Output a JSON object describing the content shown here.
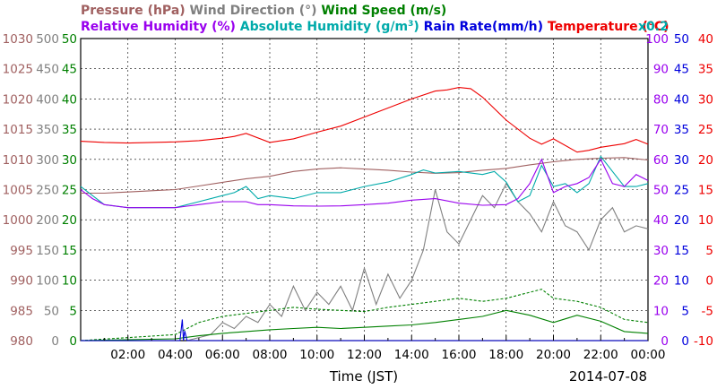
{
  "chart_data": {
    "type": "line",
    "date": "2014-07-08",
    "xlabel": "Time (JST)",
    "x_ticks": [
      "02:00",
      "04:00",
      "06:00",
      "08:00",
      "10:00",
      "12:00",
      "14:00",
      "16:00",
      "18:00",
      "20:00",
      "22:00",
      "00:00"
    ],
    "x_range_hours": [
      0,
      24
    ],
    "grid": true,
    "axes": [
      {
        "id": "pressure",
        "side": "left",
        "color": "#a06060",
        "range": [
          980,
          1030
        ],
        "ticks": [
          "980",
          "985",
          "990",
          "995",
          "1000",
          "1005",
          "1010",
          "1015",
          "1020",
          "1025",
          "1030"
        ]
      },
      {
        "id": "wind_dir",
        "side": "left",
        "color": "#808080",
        "range": [
          0,
          500
        ],
        "ticks": [
          "0",
          "50",
          "100",
          "150",
          "200",
          "250",
          "300",
          "350",
          "400",
          "450",
          "500"
        ]
      },
      {
        "id": "wind_speed",
        "side": "left",
        "color": "#008000",
        "range": [
          0,
          50
        ],
        "ticks": [
          "0",
          "5",
          "10",
          "15",
          "20",
          "25",
          "30",
          "35",
          "40",
          "45",
          "50"
        ]
      },
      {
        "id": "humidity",
        "side": "right",
        "color": "#9900ee",
        "range": [
          0,
          100
        ],
        "ticks": [
          "0",
          "10",
          "20",
          "30",
          "40",
          "50",
          "60",
          "70",
          "80",
          "90",
          "100"
        ]
      },
      {
        "id": "rain",
        "side": "right",
        "color": "#0000dd",
        "range": [
          0,
          50
        ],
        "ticks": [
          "0",
          "5",
          "10",
          "15",
          "20",
          "25",
          "30",
          "35",
          "40",
          "45",
          "50"
        ]
      },
      {
        "id": "temperature",
        "side": "right",
        "color": "#ee0000",
        "range": [
          -10,
          40
        ],
        "ticks": [
          "-10",
          "-5",
          "0",
          "5",
          "10",
          "15",
          "20",
          "25",
          "30",
          "35",
          "40"
        ]
      }
    ],
    "legend": {
      "row1": [
        {
          "label": "Pressure (hPa)",
          "color": "#a06060"
        },
        {
          "label": "Wind Direction (°)",
          "color": "#808080"
        },
        {
          "label": "Wind Speed (m/s)",
          "color": "#008000"
        }
      ],
      "row2": [
        {
          "label": "Relative Humidity (%)",
          "color": "#9900ee"
        },
        {
          "label": "Absolute Humidity (g/m",
          "sup": "3",
          "close": ")",
          "color": "#00aaaa"
        },
        {
          "label": "Rain Rate(mm/h)",
          "color": "#0000dd"
        },
        {
          "label": "Temperature (°C)",
          "color": "#ee0000"
        }
      ],
      "corner_note": {
        "text": "x0.2",
        "color": "#00aaaa"
      }
    },
    "series": [
      {
        "name": "Temperature",
        "axis": "temperature",
        "color": "#ee0000",
        "x": [
          0,
          1,
          2,
          3,
          4,
          5,
          6,
          6.5,
          7,
          8,
          9,
          10,
          11,
          12,
          13,
          14,
          15,
          15.5,
          16,
          16.5,
          17,
          18,
          19,
          19.5,
          20,
          21,
          21.5,
          22,
          23,
          23.5,
          24
        ],
        "y": [
          23,
          22.8,
          22.7,
          22.8,
          22.9,
          23.1,
          23.5,
          23.8,
          24.3,
          22.8,
          23.4,
          24.5,
          25.5,
          27,
          28.5,
          30,
          31.3,
          31.5,
          31.9,
          31.7,
          30.3,
          26.5,
          23.5,
          22.5,
          23.4,
          21.2,
          21.5,
          22,
          22.6,
          23.3,
          22.5
        ]
      },
      {
        "name": "Pressure",
        "axis": "pressure",
        "color": "#a06060",
        "x": [
          0,
          1,
          2,
          3,
          4,
          5,
          6,
          7,
          8,
          9,
          10,
          11,
          12,
          13,
          14,
          15,
          16,
          17,
          18,
          19,
          20,
          21,
          22,
          23,
          24
        ],
        "y": [
          1004.4,
          1004.4,
          1004.6,
          1004.8,
          1005,
          1005.6,
          1006.2,
          1006.8,
          1007.2,
          1008,
          1008.4,
          1008.6,
          1008.4,
          1008.2,
          1007.9,
          1007.7,
          1007.8,
          1008.2,
          1008.5,
          1009.1,
          1009.6,
          1010,
          1010.2,
          1010.3,
          1009.9
        ]
      },
      {
        "name": "Relative Humidity",
        "axis": "humidity",
        "color": "#9900ee",
        "x": [
          0,
          0.5,
          1,
          2,
          3,
          4,
          4.5,
          5,
          6,
          7,
          7.5,
          8,
          9,
          10,
          11,
          12,
          13,
          14,
          15,
          16,
          17,
          18,
          18.5,
          19,
          19.5,
          20,
          20.5,
          21,
          21.5,
          22,
          22.5,
          23,
          23.5,
          24
        ],
        "y": [
          50,
          47,
          45,
          44,
          44,
          44,
          44.5,
          45,
          46,
          46,
          45,
          45,
          44.6,
          44.5,
          44.6,
          45,
          45.5,
          46.5,
          47,
          45.5,
          44.8,
          45,
          47,
          52,
          60,
          49,
          51,
          52,
          54,
          60,
          52,
          51,
          55,
          53
        ]
      },
      {
        "name": "Absolute Humidity",
        "axis": "humidity",
        "color": "#00aaaa",
        "x": [
          0,
          0.5,
          1,
          2,
          3,
          4,
          5,
          6,
          6.5,
          7,
          7.5,
          8,
          9,
          10,
          11,
          12,
          13,
          14,
          14.5,
          15,
          16,
          17,
          17.5,
          18,
          18.5,
          19,
          19.5,
          20,
          20.5,
          21,
          21.5,
          22,
          22.5,
          23,
          23.5,
          24
        ],
        "y": [
          51,
          48,
          45,
          44,
          44,
          44,
          46,
          48,
          49,
          51,
          47,
          48,
          47,
          49,
          49,
          51,
          52.5,
          55,
          56.5,
          55.5,
          56,
          55,
          56,
          52.5,
          46,
          48,
          58,
          51,
          52,
          49,
          52,
          61,
          56,
          51,
          51,
          52
        ]
      },
      {
        "name": "Rain Rate",
        "axis": "rain",
        "color": "#0000dd",
        "x": [
          0,
          4.2,
          4.3,
          4.35,
          4.4,
          4.5,
          24
        ],
        "y": [
          0,
          0,
          3.5,
          0,
          1.6,
          0,
          0
        ]
      },
      {
        "name": "Wind Speed",
        "axis": "wind_speed",
        "color": "#008000",
        "x": [
          0,
          4,
          5,
          6,
          7,
          8,
          9,
          10,
          11,
          12,
          13,
          14,
          15,
          16,
          17,
          18,
          19,
          20,
          21,
          22,
          23,
          24
        ],
        "y": [
          0,
          0.3,
          0.8,
          1.2,
          1.5,
          1.8,
          2,
          2.2,
          2,
          2.2,
          2.4,
          2.6,
          3,
          3.5,
          4,
          5,
          4.2,
          3,
          4.2,
          3.2,
          1.5,
          1.2
        ]
      },
      {
        "name": "Wind Gust",
        "axis": "wind_speed",
        "color": "#008000",
        "dashed": true,
        "x": [
          0,
          4,
          5,
          6,
          7,
          8,
          9,
          10,
          11,
          12,
          13,
          14,
          15,
          16,
          17,
          18,
          19,
          19.5,
          20,
          21,
          22,
          23,
          24
        ],
        "y": [
          0,
          1,
          3,
          4,
          4.5,
          5,
          5.5,
          5.2,
          5,
          4.8,
          5.5,
          6,
          6.5,
          7,
          6.5,
          7,
          8,
          8.5,
          7,
          6.5,
          5.5,
          3.5,
          3
        ]
      },
      {
        "name": "Wind Direction",
        "axis": "wind_dir",
        "color": "#808080",
        "x": [
          4.5,
          5.5,
          6,
          6.5,
          7,
          7.5,
          8,
          8.5,
          9,
          9.5,
          10,
          10.5,
          11,
          11.5,
          12,
          12.5,
          13,
          13.5,
          14,
          14.5,
          15,
          15.5,
          16,
          16.5,
          17,
          17.5,
          18,
          18.5,
          19,
          19.5,
          20,
          20.5,
          21,
          21.5,
          22,
          22.5,
          23,
          23.5,
          24
        ],
        "y": [
          0,
          10,
          30,
          20,
          40,
          30,
          60,
          40,
          90,
          50,
          80,
          60,
          90,
          50,
          120,
          60,
          110,
          70,
          100,
          150,
          250,
          180,
          160,
          200,
          240,
          220,
          260,
          230,
          210,
          180,
          230,
          190,
          180,
          150,
          200,
          220,
          180,
          190,
          185
        ]
      }
    ]
  }
}
